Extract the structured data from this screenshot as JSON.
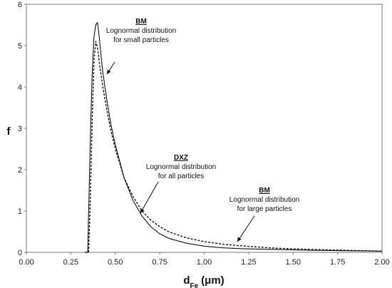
{
  "chart_data": {
    "type": "line",
    "xlabel_main": "d",
    "xlabel_sub": "Fe",
    "xlabel_unit": "(μm)",
    "ylabel": "f",
    "xlim": [
      0,
      2
    ],
    "ylim": [
      0,
      6
    ],
    "x_ticks": [
      "0.00",
      "0.25",
      "0.50",
      "0.75",
      "1.00",
      "1.25",
      "1.50",
      "1.75",
      "2.00"
    ],
    "y_ticks": [
      "0",
      "1",
      "2",
      "3",
      "4",
      "5",
      "6"
    ],
    "series": [
      {
        "style": "solid",
        "x": [
          0.33,
          0.345,
          0.35,
          0.36,
          0.37,
          0.38,
          0.39,
          0.4,
          0.41,
          0.42,
          0.43,
          0.45,
          0.475,
          0.5,
          0.55,
          0.6,
          0.65,
          0.7,
          0.75,
          0.8,
          0.9,
          1.0,
          1.1,
          1.2,
          1.4,
          1.6,
          1.8,
          2.0
        ],
        "y": [
          0,
          0,
          0.9,
          2.8,
          4.3,
          5.2,
          5.5,
          5.56,
          5.2,
          4.75,
          4.35,
          3.75,
          3.1,
          2.6,
          1.8,
          1.25,
          0.88,
          0.62,
          0.45,
          0.34,
          0.22,
          0.15,
          0.11,
          0.09,
          0.07,
          0.05,
          0.04,
          0.03
        ]
      },
      {
        "style": "dashed",
        "x": [
          0.33,
          0.35,
          0.36,
          0.37,
          0.38,
          0.39,
          0.4,
          0.41,
          0.42,
          0.43,
          0.45,
          0.475,
          0.5,
          0.55,
          0.6,
          0.65,
          0.7,
          0.75,
          0.8,
          0.9,
          1.0,
          1.1,
          1.2,
          1.4,
          1.6,
          1.8,
          2.0
        ],
        "y": [
          0,
          0,
          1.3,
          3.2,
          4.6,
          5.1,
          4.95,
          4.6,
          4.3,
          4.0,
          3.5,
          2.95,
          2.5,
          1.8,
          1.35,
          1.0,
          0.78,
          0.62,
          0.5,
          0.35,
          0.26,
          0.2,
          0.16,
          0.1,
          0.07,
          0.05,
          0.03
        ]
      }
    ],
    "annotations": [
      {
        "label_bold": "BM",
        "lines": [
          "Lognormal distribution",
          "for small particles"
        ]
      },
      {
        "label_bold": "DXZ",
        "lines": [
          "Lognormal distribution",
          "for all particles"
        ]
      },
      {
        "label_bold": "BM",
        "lines": [
          "Lognormal distribution",
          "for large particles"
        ]
      }
    ]
  }
}
